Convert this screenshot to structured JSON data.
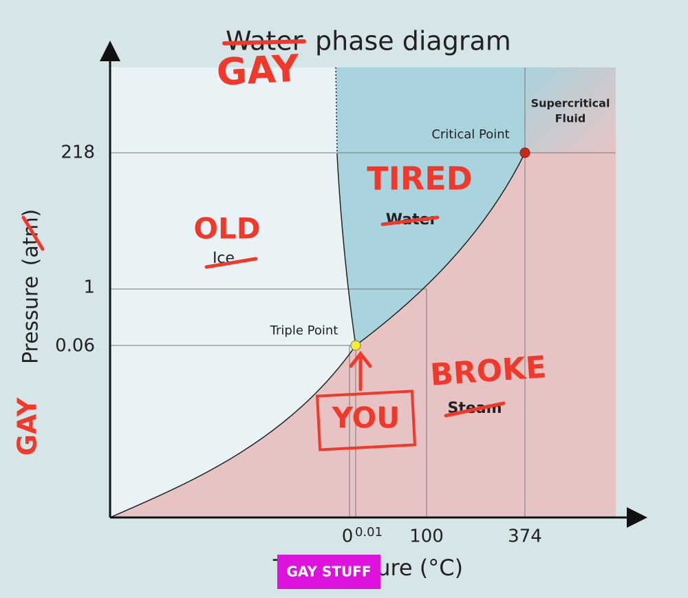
{
  "title": {
    "struck": "Water",
    "rest": "phase diagram",
    "scrawl": "GAY"
  },
  "y_axis": {
    "label": "Pressure",
    "unit": "(atm)",
    "scrawl": "GAY",
    "ticks": [
      "218",
      "1",
      "0.06"
    ]
  },
  "x_axis": {
    "label": "Temperature (°C)",
    "sticker": "GAY STUFF",
    "ticks": [
      "0",
      "0.01",
      "100",
      "374"
    ]
  },
  "regions": {
    "ice": {
      "label": "Ice",
      "scrawl": "OLD"
    },
    "water": {
      "label": "Water",
      "scrawl": "TIRED"
    },
    "steam": {
      "label": "Steam",
      "scrawl": "BROKE"
    },
    "supercritical": {
      "line1": "Supercritical",
      "line2": "Fluid"
    }
  },
  "points": {
    "critical": "Critical Point",
    "triple": "Triple Point",
    "you": "YOU"
  }
}
